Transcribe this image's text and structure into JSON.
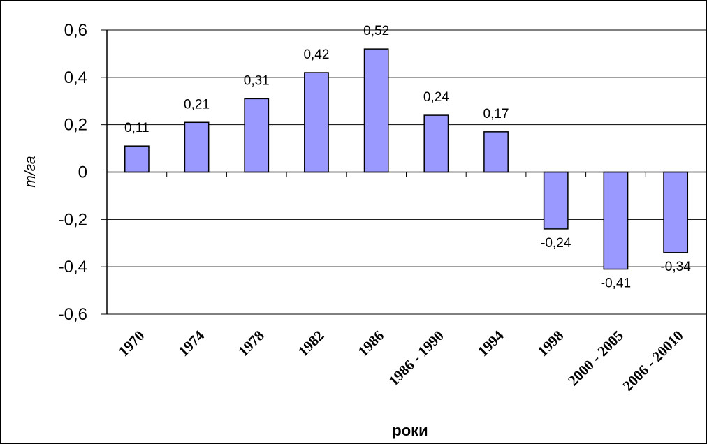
{
  "chart_data": {
    "type": "bar",
    "categories": [
      "1970",
      "1974",
      "1978",
      "1982",
      "1986",
      "1986 - 1990",
      "1994",
      "1998",
      "2000 - 2005",
      "2006 - 20010"
    ],
    "values": [
      0.11,
      0.21,
      0.31,
      0.42,
      0.52,
      0.24,
      0.17,
      -0.24,
      -0.41,
      -0.34
    ],
    "value_labels": [
      "0,11",
      "0,21",
      "0,31",
      "0,42",
      "0,52",
      "0,24",
      "0,17",
      "-0,24",
      "-0,41",
      "-0,34"
    ],
    "ylim": [
      -0.6,
      0.6
    ],
    "yticks": [
      0.6,
      0.4,
      0.2,
      0,
      -0.2,
      -0.4,
      -0.6
    ],
    "ytick_labels": [
      "0,6",
      "0,4",
      "0,2",
      "0",
      "-0,2",
      "-0,4",
      "-0,6"
    ],
    "xlabel": "роки",
    "ylabel": "т/га",
    "grid": true,
    "legend": "none",
    "bar_color": "#9999ff"
  }
}
